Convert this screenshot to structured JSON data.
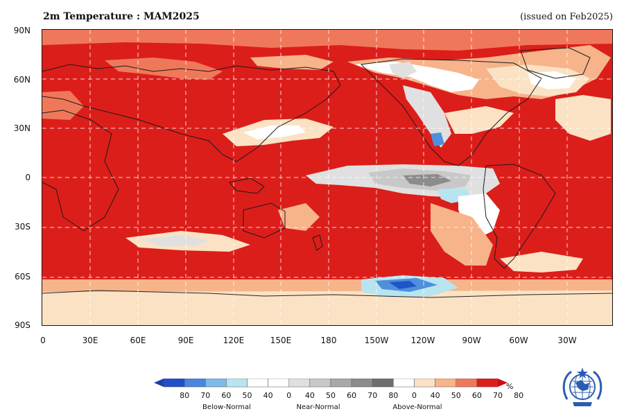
{
  "header": {
    "title": "2m Temperature : MAM2025",
    "issued": "(issued on Feb2025)"
  },
  "map": {
    "lat_labels": [
      "90N",
      "60N",
      "30N",
      "0",
      "30S",
      "60S",
      "90S"
    ],
    "lon_labels": [
      "0",
      "30E",
      "60E",
      "90E",
      "120E",
      "150E",
      "180",
      "150W",
      "120W",
      "90W",
      "60W",
      "30W"
    ],
    "background_color": "#dc1e1a",
    "category_colors": {
      "above_80": "#dc1e1a",
      "above_70": "#f0785a",
      "above_60": "#f7b38a",
      "above_50": "#fbe2c4",
      "above_40": "#ffffff",
      "near_40": "#e0e0e0",
      "near_60": "#c8c8c8",
      "near_70": "#a8a8a8",
      "near_80": "#8c8c8c",
      "below_50": "#b8e4f0",
      "below_60": "#7fb9e6",
      "below_70": "#4f8fdb",
      "below_80": "#1f55c9"
    }
  },
  "legend": {
    "unit": "%",
    "ticks": [
      "80",
      "70",
      "60",
      "50",
      "40",
      "0",
      "40",
      "50",
      "60",
      "70",
      "80",
      "0",
      "40",
      "50",
      "60",
      "70",
      "80"
    ],
    "categories": [
      "Below-Normal",
      "Near-Normal",
      "Above-Normal"
    ],
    "colors": [
      "#1f4fc9",
      "#4a86dc",
      "#7fb9e6",
      "#b8e4f0",
      "#ffffff",
      "#ffffff",
      "#e0e0e0",
      "#c8c8c8",
      "#a8a8a8",
      "#8c8c8c",
      "#6e6e6e",
      "#ffffff",
      "#fbe2c4",
      "#f7b38a",
      "#f0785a",
      "#dc1e1a"
    ],
    "left_arrow_color": "#1f3fa8",
    "right_arrow_color": "#c81010"
  },
  "logo": {
    "name": "WMO emblem"
  }
}
